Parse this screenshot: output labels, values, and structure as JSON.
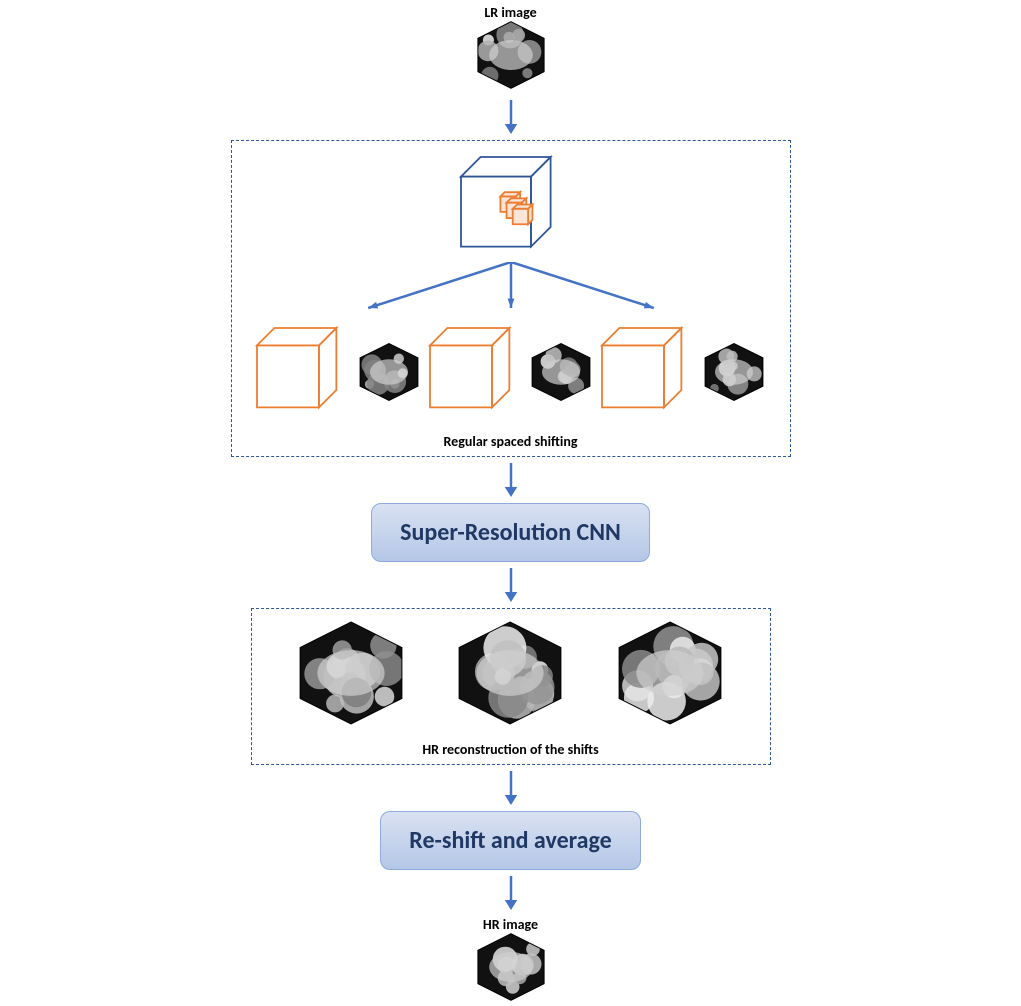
{
  "labels": {
    "lr_image": "LR image",
    "hr_image": "HR image",
    "shift_caption": "Regular spaced shifting",
    "hr_recon_caption": "HR reconstruction of the shifts",
    "cnn": "Super-Resolution CNN",
    "reshift": "Re-shift and average"
  },
  "style": {
    "arrow_color": "#4472c4",
    "arrow_width": 2.5,
    "arrow_head": 10,
    "dashed_border_color": "#2f5597",
    "cube_main_stroke": "#2f5597",
    "cube_small_stroke": "#ed7d31",
    "cube_small_fill": "#fbe5d6",
    "orange_cube_stroke": "#ed7d31",
    "process_bg_top": "#d9e1f2",
    "process_bg_bottom": "#b4c7e7",
    "process_border": "#8faadc",
    "process_text": "#1f3864",
    "process_fontsize": 24,
    "label_fontsize": 14,
    "caption_fontsize": 14,
    "hex_border": "#000000",
    "hex_fill": "#111111",
    "hex_small_w": 68,
    "hex_small_h": 58,
    "hex_med_w": 78,
    "hex_med_h": 68,
    "hex_large_w": 120,
    "hex_large_h": 104,
    "hex_xl_w": 78,
    "hex_xl_h": 68,
    "background": "#ffffff"
  },
  "layout": {
    "shift_count": 3,
    "hr_count": 3
  }
}
